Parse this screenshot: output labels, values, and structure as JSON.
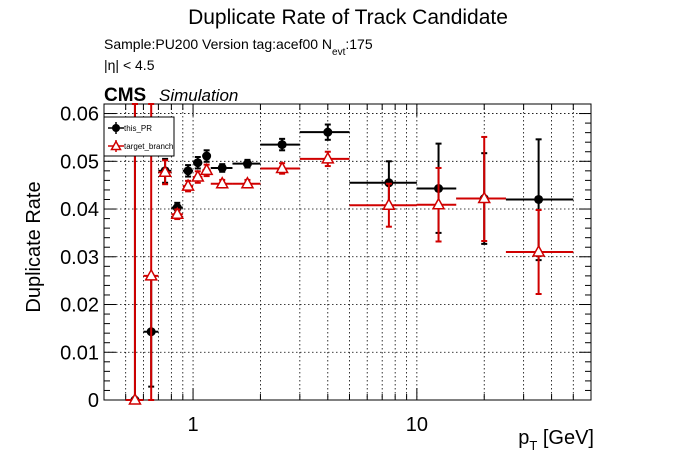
{
  "chart_data": {
    "type": "scatter",
    "title": "Duplicate Rate of Track Candidate",
    "sample_text": "Sample:PU200   Version tag:acef00  N",
    "nevt_sub": "evt",
    "nevt_value": ":175",
    "eta_cut": "|η| < 4.5",
    "cms_label": "CMS",
    "cms_sub": "Simulation",
    "ylabel": "Duplicate Rate",
    "xlabel_main": "p",
    "xlabel_sub": "T",
    "xlabel_unit": " [GeV]",
    "x_scale": "log",
    "xlim": [
      0.4,
      60
    ],
    "ylim": [
      0,
      0.062
    ],
    "grid": true,
    "legend_position": "top-left",
    "x_tick_labels": [
      {
        "v": 1,
        "label": "1"
      },
      {
        "v": 10,
        "label": "10"
      }
    ],
    "y_tick_labels": [
      {
        "v": 0,
        "label": "0"
      },
      {
        "v": 0.01,
        "label": "0.01"
      },
      {
        "v": 0.02,
        "label": "0.02"
      },
      {
        "v": 0.03,
        "label": "0.03"
      },
      {
        "v": 0.04,
        "label": "0.04"
      },
      {
        "v": 0.05,
        "label": "0.05"
      },
      {
        "v": 0.06,
        "label": "0.06"
      }
    ],
    "series": [
      {
        "name": "this_PR",
        "color": "#000000",
        "marker": "filled-circle",
        "points": [
          {
            "x": 0.55,
            "xlo": 0.5,
            "xhi": 0.6,
            "y": 0.0,
            "ylo": 0.0,
            "yhi": 0.062
          },
          {
            "x": 0.65,
            "xlo": 0.6,
            "xhi": 0.7,
            "y": 0.0143,
            "ylo": 0.0028,
            "yhi": 0.026
          },
          {
            "x": 0.75,
            "xlo": 0.7,
            "xhi": 0.8,
            "y": 0.048,
            "ylo": 0.0455,
            "yhi": 0.0505
          },
          {
            "x": 0.85,
            "xlo": 0.8,
            "xhi": 0.9,
            "y": 0.0403,
            "ylo": 0.0393,
            "yhi": 0.0413
          },
          {
            "x": 0.95,
            "xlo": 0.9,
            "xhi": 1.0,
            "y": 0.048,
            "ylo": 0.0468,
            "yhi": 0.0492
          },
          {
            "x": 1.05,
            "xlo": 1.0,
            "xhi": 1.1,
            "y": 0.0497,
            "ylo": 0.0485,
            "yhi": 0.0509
          },
          {
            "x": 1.15,
            "xlo": 1.1,
            "xhi": 1.2,
            "y": 0.0511,
            "ylo": 0.0499,
            "yhi": 0.0523
          },
          {
            "x": 1.35,
            "xlo": 1.2,
            "xhi": 1.5,
            "y": 0.0486,
            "ylo": 0.0478,
            "yhi": 0.0494
          },
          {
            "x": 1.75,
            "xlo": 1.5,
            "xhi": 2.0,
            "y": 0.0495,
            "ylo": 0.0487,
            "yhi": 0.0503
          },
          {
            "x": 2.5,
            "xlo": 2.0,
            "xhi": 3.0,
            "y": 0.0535,
            "ylo": 0.0523,
            "yhi": 0.0547
          },
          {
            "x": 4.0,
            "xlo": 3.0,
            "xhi": 5.0,
            "y": 0.0561,
            "ylo": 0.0545,
            "yhi": 0.0577
          },
          {
            "x": 7.5,
            "xlo": 5.0,
            "xhi": 10.0,
            "y": 0.0455,
            "ylo": 0.041,
            "yhi": 0.05
          },
          {
            "x": 12.5,
            "xlo": 10.0,
            "xhi": 15.0,
            "y": 0.0443,
            "ylo": 0.035,
            "yhi": 0.0537
          },
          {
            "x": 20.0,
            "xlo": 15.0,
            "xhi": 25.0,
            "y": 0.0422,
            "ylo": 0.0327,
            "yhi": 0.0517
          },
          {
            "x": 35.0,
            "xlo": 25.0,
            "xhi": 50.0,
            "y": 0.042,
            "ylo": 0.0293,
            "yhi": 0.0546
          }
        ]
      },
      {
        "name": "target_branch",
        "color": "#d00000",
        "marker": "open-triangle",
        "points": [
          {
            "x": 0.55,
            "xlo": 0.5,
            "xhi": 0.6,
            "y": 0.0,
            "ylo": 0.0,
            "yhi": 0.062
          },
          {
            "x": 0.65,
            "xlo": 0.6,
            "xhi": 0.7,
            "y": 0.026,
            "ylo": 0.0,
            "yhi": 0.062
          },
          {
            "x": 0.75,
            "xlo": 0.7,
            "xhi": 0.8,
            "y": 0.0477,
            "ylo": 0.0452,
            "yhi": 0.0502
          },
          {
            "x": 0.85,
            "xlo": 0.8,
            "xhi": 0.9,
            "y": 0.0389,
            "ylo": 0.0379,
            "yhi": 0.0399
          },
          {
            "x": 0.95,
            "xlo": 0.9,
            "xhi": 1.0,
            "y": 0.0448,
            "ylo": 0.0437,
            "yhi": 0.0459
          },
          {
            "x": 1.05,
            "xlo": 1.0,
            "xhi": 1.1,
            "y": 0.0467,
            "ylo": 0.0455,
            "yhi": 0.0479
          },
          {
            "x": 1.15,
            "xlo": 1.1,
            "xhi": 1.2,
            "y": 0.0481,
            "ylo": 0.0469,
            "yhi": 0.0493
          },
          {
            "x": 1.35,
            "xlo": 1.2,
            "xhi": 1.5,
            "y": 0.0453,
            "ylo": 0.0445,
            "yhi": 0.0461
          },
          {
            "x": 1.75,
            "xlo": 1.5,
            "xhi": 2.0,
            "y": 0.0453,
            "ylo": 0.0445,
            "yhi": 0.0461
          },
          {
            "x": 2.5,
            "xlo": 2.0,
            "xhi": 3.0,
            "y": 0.0485,
            "ylo": 0.0474,
            "yhi": 0.0496
          },
          {
            "x": 4.0,
            "xlo": 3.0,
            "xhi": 5.0,
            "y": 0.0505,
            "ylo": 0.049,
            "yhi": 0.052
          },
          {
            "x": 7.5,
            "xlo": 5.0,
            "xhi": 10.0,
            "y": 0.0408,
            "ylo": 0.0363,
            "yhi": 0.0453
          },
          {
            "x": 12.5,
            "xlo": 10.0,
            "xhi": 15.0,
            "y": 0.0409,
            "ylo": 0.0332,
            "yhi": 0.0486
          },
          {
            "x": 20.0,
            "xlo": 15.0,
            "xhi": 25.0,
            "y": 0.0422,
            "ylo": 0.0333,
            "yhi": 0.0551
          },
          {
            "x": 35.0,
            "xlo": 25.0,
            "xhi": 50.0,
            "y": 0.031,
            "ylo": 0.0222,
            "yhi": 0.0398
          }
        ]
      }
    ]
  }
}
